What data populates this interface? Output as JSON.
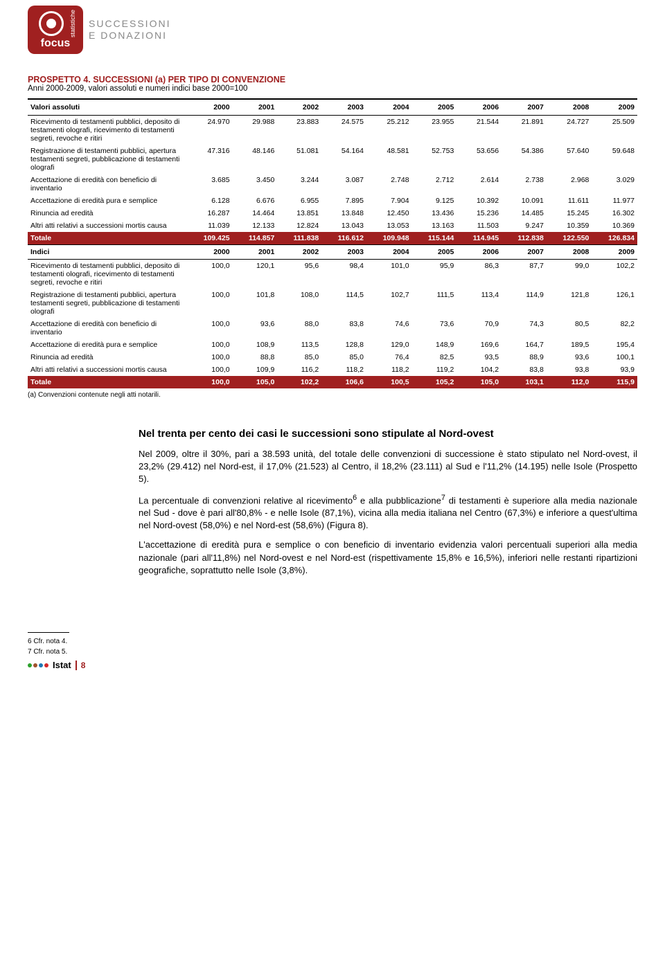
{
  "banner": {
    "logo_label": "focus",
    "logo_side": "statistiche",
    "title_line1": "SUCCESSIONI",
    "title_line2": "E DONAZIONI"
  },
  "prospetto": {
    "title": "PROSPETTO 4. SUCCESSIONI (a) PER TIPO DI CONVENZIONE",
    "subtitle": "Anni 2000-2009, valori assoluti e numeri indici base 2000=100",
    "header_label": "Valori assoluti",
    "years": [
      "2000",
      "2001",
      "2002",
      "2003",
      "2004",
      "2005",
      "2006",
      "2007",
      "2008",
      "2009"
    ],
    "rows_abs": [
      {
        "label": "Ricevimento di testamenti pubblici, deposito di testamenti olografi, ricevimento di testamenti segreti, revoche e ritiri",
        "v": [
          "24.970",
          "29.988",
          "23.883",
          "24.575",
          "25.212",
          "23.955",
          "21.544",
          "21.891",
          "24.727",
          "25.509"
        ]
      },
      {
        "label": "Registrazione di testamenti pubblici, apertura testamenti segreti, pubblicazione di testamenti olografi",
        "v": [
          "47.316",
          "48.146",
          "51.081",
          "54.164",
          "48.581",
          "52.753",
          "53.656",
          "54.386",
          "57.640",
          "59.648"
        ]
      },
      {
        "label": "Accettazione di eredità con beneficio di inventario",
        "v": [
          "3.685",
          "3.450",
          "3.244",
          "3.087",
          "2.748",
          "2.712",
          "2.614",
          "2.738",
          "2.968",
          "3.029"
        ]
      },
      {
        "label": "Accettazione di eredità pura e semplice",
        "v": [
          "6.128",
          "6.676",
          "6.955",
          "7.895",
          "7.904",
          "9.125",
          "10.392",
          "10.091",
          "11.611",
          "11.977"
        ]
      },
      {
        "label": "Rinuncia ad eredità",
        "v": [
          "16.287",
          "14.464",
          "13.851",
          "13.848",
          "12.450",
          "13.436",
          "15.236",
          "14.485",
          "15.245",
          "16.302"
        ]
      },
      {
        "label": "Altri atti relativi a successioni mortis causa",
        "v": [
          "11.039",
          "12.133",
          "12.824",
          "13.043",
          "13.053",
          "13.163",
          "11.503",
          "9.247",
          "10.359",
          "10.369"
        ]
      }
    ],
    "total_abs": {
      "label": "Totale",
      "v": [
        "109.425",
        "114.857",
        "111.838",
        "116.612",
        "109.948",
        "115.144",
        "114.945",
        "112.838",
        "122.550",
        "126.834"
      ]
    },
    "indices_label": "Indici",
    "rows_idx": [
      {
        "label": "Ricevimento di testamenti pubblici, deposito di testamenti olografi, ricevimento di testamenti segreti, revoche e ritiri",
        "v": [
          "100,0",
          "120,1",
          "95,6",
          "98,4",
          "101,0",
          "95,9",
          "86,3",
          "87,7",
          "99,0",
          "102,2"
        ]
      },
      {
        "label": "Registrazione di testamenti pubblici, apertura testamenti segreti, pubblicazione di testamenti olografi",
        "v": [
          "100,0",
          "101,8",
          "108,0",
          "114,5",
          "102,7",
          "111,5",
          "113,4",
          "114,9",
          "121,8",
          "126,1"
        ]
      },
      {
        "label": "Accettazione di eredità con beneficio di inventario",
        "v": [
          "100,0",
          "93,6",
          "88,0",
          "83,8",
          "74,6",
          "73,6",
          "70,9",
          "74,3",
          "80,5",
          "82,2"
        ]
      },
      {
        "label": "Accettazione di eredità pura e semplice",
        "v": [
          "100,0",
          "108,9",
          "113,5",
          "128,8",
          "129,0",
          "148,9",
          "169,6",
          "164,7",
          "189,5",
          "195,4"
        ]
      },
      {
        "label": "Rinuncia ad eredità",
        "v": [
          "100,0",
          "88,8",
          "85,0",
          "85,0",
          "76,4",
          "82,5",
          "93,5",
          "88,9",
          "93,6",
          "100,1"
        ]
      },
      {
        "label": "Altri atti relativi a successioni mortis causa",
        "v": [
          "100,0",
          "109,9",
          "116,2",
          "118,2",
          "118,2",
          "119,2",
          "104,2",
          "83,8",
          "93,8",
          "93,9"
        ]
      }
    ],
    "total_idx": {
      "label": "Totale",
      "v": [
        "100,0",
        "105,0",
        "102,2",
        "106,6",
        "100,5",
        "105,2",
        "105,0",
        "103,1",
        "112,0",
        "115,9"
      ]
    },
    "footnote_a": "(a) Convenzioni contenute negli atti notarili."
  },
  "body": {
    "h": "Nel trenta per cento dei casi le successioni sono stipulate al Nord-ovest",
    "p1": "Nel 2009, oltre il 30%, pari a 38.593 unità, del totale delle convenzioni di successione è stato stipulato nel Nord-ovest, il 23,2% (29.412) nel Nord-est, il 17,0% (21.523) al Centro, il 18,2% (23.111) al Sud e l'11,2% (14.195) nelle Isole (Prospetto 5).",
    "p2a": "La percentuale di convenzioni relative al ricevimento",
    "p2_sup1": "6",
    "p2b": " e alla pubblicazione",
    "p2_sup2": "7",
    "p2c": " di testamenti è superiore alla media nazionale nel Sud - dove è pari all'80,8% - e nelle Isole (87,1%), vicina alla media italiana nel Centro (67,3%) e inferiore a quest'ultima nel Nord-ovest (58,0%) e nel Nord-est (58,6%) (Figura 8).",
    "p3": "L'accettazione di eredità pura e semplice o con beneficio di inventario evidenzia valori percentuali superiori alla media nazionale (pari all'11,8%) nel Nord-ovest e nel Nord-est (rispettivamente 15,8% e 16,5%), inferiori nelle restanti ripartizioni geografiche, soprattutto nelle Isole (3,8%)."
  },
  "footer": {
    "note6": "6 Cfr. nota 4.",
    "note7": "7 Cfr. nota 5.",
    "brand": "Istat",
    "page": "8",
    "dot_colors": [
      "#2ca02c",
      "#a0522d",
      "#1f77b4",
      "#d62728"
    ]
  }
}
